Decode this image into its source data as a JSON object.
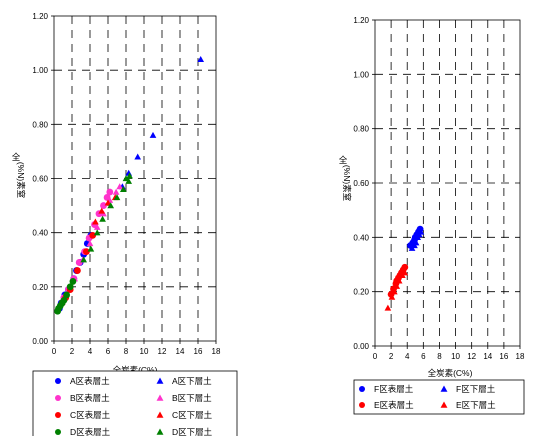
{
  "chart_data": [
    {
      "type": "scatter",
      "xlabel": "全炭素(C%)",
      "ylabel_top": "全",
      "ylabel_rest": "(%N)素窒",
      "xlim": [
        0,
        18
      ],
      "ylim": [
        0,
        1.2
      ],
      "x_ticks": [
        "0",
        "2",
        "4",
        "6",
        "8",
        "10",
        "12",
        "14",
        "16",
        "18"
      ],
      "y_ticks": [
        "0.00",
        "0.20",
        "0.40",
        "0.60",
        "0.80",
        "1.00",
        "1.20"
      ],
      "grid": "dashed",
      "legend_position": "bottom",
      "series": [
        {
          "name": "A区表層土",
          "marker": "circle",
          "color": "#0000ff",
          "points": [
            [
              0.6,
              0.12
            ],
            [
              0.8,
              0.14
            ],
            [
              1.2,
              0.17
            ],
            [
              1.6,
              0.19
            ],
            [
              2.2,
              0.23
            ],
            [
              2.5,
              0.26
            ],
            [
              2.9,
              0.29
            ],
            [
              3.3,
              0.32
            ],
            [
              3.7,
              0.36
            ],
            [
              4.1,
              0.39
            ]
          ]
        },
        {
          "name": "A区下層土",
          "marker": "triangle",
          "color": "#0000ff",
          "points": [
            [
              16.3,
              1.04
            ],
            [
              11.0,
              0.76
            ],
            [
              9.3,
              0.68
            ],
            [
              8.3,
              0.62
            ],
            [
              7.6,
              0.57
            ]
          ]
        },
        {
          "name": "B区表層土",
          "marker": "circle",
          "color": "#ff33cc",
          "points": [
            [
              1.1,
              0.16
            ],
            [
              1.6,
              0.19
            ],
            [
              2.2,
              0.23
            ],
            [
              2.8,
              0.29
            ],
            [
              3.4,
              0.33
            ],
            [
              3.9,
              0.38
            ],
            [
              4.5,
              0.43
            ],
            [
              5.0,
              0.47
            ],
            [
              5.5,
              0.5
            ],
            [
              5.9,
              0.53
            ],
            [
              6.2,
              0.55
            ]
          ]
        },
        {
          "name": "B区下層土",
          "marker": "triangle",
          "color": "#ff33cc",
          "points": [
            [
              2.3,
              0.23
            ],
            [
              3.2,
              0.3
            ],
            [
              4.0,
              0.36
            ],
            [
              4.8,
              0.42
            ],
            [
              5.5,
              0.47
            ],
            [
              6.2,
              0.52
            ],
            [
              6.9,
              0.55
            ],
            [
              7.3,
              0.57
            ]
          ]
        },
        {
          "name": "C区表層土",
          "marker": "circle",
          "color": "#ff0000",
          "points": [
            [
              0.9,
              0.14
            ],
            [
              1.3,
              0.16
            ],
            [
              1.8,
              0.19
            ],
            [
              2.6,
              0.26
            ],
            [
              3.6,
              0.33
            ],
            [
              4.3,
              0.39
            ]
          ]
        },
        {
          "name": "C区下層土",
          "marker": "triangle",
          "color": "#ff0000",
          "points": [
            [
              4.6,
              0.44
            ],
            [
              5.3,
              0.48
            ],
            [
              6.0,
              0.51
            ],
            [
              6.8,
              0.53
            ]
          ]
        },
        {
          "name": "D区表層土",
          "marker": "circle",
          "color": "#008000",
          "points": [
            [
              0.4,
              0.11
            ],
            [
              0.5,
              0.12
            ],
            [
              0.7,
              0.13
            ],
            [
              0.9,
              0.14
            ],
            [
              1.1,
              0.15
            ],
            [
              1.4,
              0.17
            ],
            [
              1.8,
              0.2
            ],
            [
              2.1,
              0.22
            ]
          ]
        },
        {
          "name": "D区下層土",
          "marker": "triangle",
          "color": "#008000",
          "points": [
            [
              3.3,
              0.3
            ],
            [
              4.1,
              0.34
            ],
            [
              4.8,
              0.4
            ],
            [
              5.4,
              0.45
            ],
            [
              6.3,
              0.5
            ],
            [
              7.0,
              0.53
            ],
            [
              7.7,
              0.56
            ],
            [
              8.0,
              0.6
            ],
            [
              8.4,
              0.61
            ],
            [
              8.3,
              0.59
            ]
          ]
        }
      ]
    },
    {
      "type": "scatter",
      "xlabel": "全炭素(C%)",
      "ylabel_top": "全",
      "ylabel_rest": "(%N)素窒",
      "xlim": [
        0,
        18
      ],
      "ylim": [
        0,
        1.2
      ],
      "x_ticks": [
        "0",
        "2",
        "4",
        "6",
        "8",
        "10",
        "12",
        "14",
        "16",
        "18"
      ],
      "y_ticks": [
        "0.00",
        "0.20",
        "0.40",
        "0.60",
        "0.80",
        "1.00",
        "1.20"
      ],
      "grid": "dashed",
      "legend_position": "bottom",
      "series": [
        {
          "name": "F区表層土",
          "marker": "circle",
          "color": "#0000ff",
          "points": [
            [
              4.4,
              0.37
            ],
            [
              4.7,
              0.38
            ],
            [
              5.0,
              0.4
            ],
            [
              5.2,
              0.41
            ],
            [
              5.4,
              0.42
            ],
            [
              5.6,
              0.43
            ],
            [
              4.9,
              0.39
            ]
          ]
        },
        {
          "name": "F区下層土",
          "marker": "triangle",
          "color": "#0000ff",
          "points": [
            [
              4.6,
              0.36
            ],
            [
              4.9,
              0.37
            ],
            [
              5.1,
              0.38
            ],
            [
              5.3,
              0.4
            ],
            [
              5.5,
              0.41
            ],
            [
              5.7,
              0.42
            ]
          ]
        },
        {
          "name": "E区表層土",
          "marker": "circle",
          "color": "#ff0000",
          "points": [
            [
              2.0,
              0.19
            ],
            [
              2.3,
              0.21
            ],
            [
              2.6,
              0.23
            ],
            [
              2.9,
              0.25
            ],
            [
              3.1,
              0.26
            ],
            [
              3.3,
              0.27
            ],
            [
              3.5,
              0.28
            ],
            [
              3.7,
              0.29
            ],
            [
              2.7,
              0.24
            ]
          ]
        },
        {
          "name": "E区下層土",
          "marker": "triangle",
          "color": "#ff0000",
          "points": [
            [
              1.6,
              0.14
            ],
            [
              2.1,
              0.18
            ],
            [
              2.4,
              0.2
            ],
            [
              2.7,
              0.22
            ],
            [
              3.0,
              0.24
            ],
            [
              3.4,
              0.26
            ],
            [
              3.7,
              0.27
            ]
          ]
        }
      ]
    }
  ]
}
